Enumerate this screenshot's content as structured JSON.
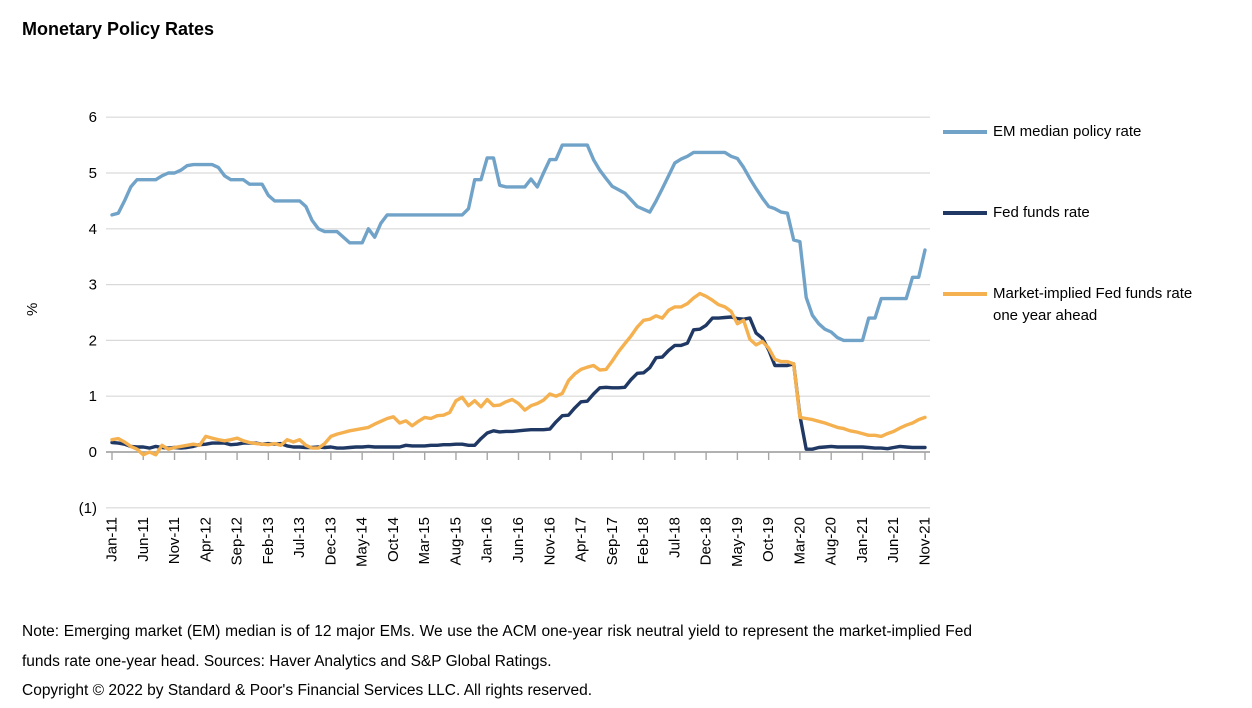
{
  "title": "Monetary Policy Rates",
  "y_axis_label": "%",
  "footer": {
    "note": "Note: Emerging market (EM) median is of 12 major EMs. We use the ACM one-year risk neutral yield to represent the market-implied Fed funds rate one-year head. Sources: Haver Analytics and S&P Global Ratings.",
    "copyright": "Copyright © 2022 by Standard & Poor's Financial Services LLC. All rights reserved."
  },
  "colors": {
    "grid": "#D9D9D9",
    "axis": "#A6A6A6",
    "text": "#000000",
    "em_line": "#71A3C9",
    "fed_line": "#1F3864",
    "implied_line": "#F5B04F"
  },
  "chart_data": {
    "type": "line",
    "title": "Monetary Policy Rates",
    "xlabel": "",
    "ylabel": "%",
    "ylim": [
      -1,
      6
    ],
    "grid": "horizontal",
    "legend_position": "right",
    "x_start": "Jan-11",
    "x_end": "Nov-21",
    "x_points": 131,
    "x_tick_every_months": 5,
    "x_tick_labels": [
      "Jan-11",
      "Jun-11",
      "Nov-11",
      "Apr-12",
      "Sep-12",
      "Feb-13",
      "Jul-13",
      "Dec-13",
      "May-14",
      "Oct-14",
      "Mar-15",
      "Aug-15",
      "Jan-16",
      "Jun-16",
      "Nov-16",
      "Apr-17",
      "Sep-17",
      "Feb-18",
      "Jul-18",
      "Dec-18",
      "May-19",
      "Oct-19",
      "Mar-20",
      "Aug-20",
      "Jan-21",
      "Jun-21",
      "Nov-21"
    ],
    "y_ticks": [
      {
        "value": 6,
        "label": "6"
      },
      {
        "value": 5,
        "label": "5"
      },
      {
        "value": 4,
        "label": "4"
      },
      {
        "value": 3,
        "label": "3"
      },
      {
        "value": 2,
        "label": "2"
      },
      {
        "value": 1,
        "label": "1"
      },
      {
        "value": 0,
        "label": "0"
      },
      {
        "value": -1,
        "label": "(1)"
      }
    ],
    "series": [
      {
        "name": "EM median policy rate",
        "color": "#71A3C9",
        "values": [
          4.25,
          4.28,
          4.5,
          4.75,
          4.88,
          4.88,
          4.88,
          4.88,
          4.95,
          5.0,
          5.0,
          5.05,
          5.13,
          5.15,
          5.15,
          5.15,
          5.15,
          5.1,
          4.95,
          4.88,
          4.88,
          4.88,
          4.8,
          4.8,
          4.8,
          4.6,
          4.5,
          4.5,
          4.5,
          4.5,
          4.5,
          4.4,
          4.15,
          4.0,
          3.95,
          3.95,
          3.95,
          3.85,
          3.75,
          3.75,
          3.75,
          4.0,
          3.85,
          4.1,
          4.25,
          4.25,
          4.25,
          4.25,
          4.25,
          4.25,
          4.25,
          4.25,
          4.25,
          4.25,
          4.25,
          4.25,
          4.25,
          4.36,
          4.88,
          4.88,
          5.27,
          5.27,
          4.78,
          4.75,
          4.75,
          4.75,
          4.75,
          4.89,
          4.75,
          5.0,
          5.24,
          5.24,
          5.5,
          5.5,
          5.5,
          5.5,
          5.5,
          5.24,
          5.05,
          4.9,
          4.76,
          4.7,
          4.64,
          4.52,
          4.4,
          4.35,
          4.3,
          4.5,
          4.72,
          4.95,
          5.18,
          5.25,
          5.3,
          5.37,
          5.37,
          5.37,
          5.37,
          5.37,
          5.37,
          5.3,
          5.26,
          5.1,
          4.9,
          4.72,
          4.55,
          4.4,
          4.36,
          4.3,
          4.28,
          3.8,
          3.77,
          2.77,
          2.45,
          2.3,
          2.2,
          2.15,
          2.05,
          2.0,
          2.0,
          2.0,
          2.0,
          2.4,
          2.4,
          2.75,
          2.75,
          2.75,
          2.75,
          2.75,
          3.13,
          3.13,
          3.62
        ]
      },
      {
        "name": "Fed funds rate",
        "color": "#1F3864",
        "values": [
          0.17,
          0.16,
          0.14,
          0.1,
          0.09,
          0.09,
          0.07,
          0.1,
          0.08,
          0.07,
          0.08,
          0.07,
          0.08,
          0.1,
          0.13,
          0.14,
          0.16,
          0.16,
          0.16,
          0.13,
          0.14,
          0.16,
          0.16,
          0.16,
          0.14,
          0.15,
          0.14,
          0.15,
          0.11,
          0.09,
          0.09,
          0.08,
          0.08,
          0.09,
          0.08,
          0.09,
          0.07,
          0.07,
          0.08,
          0.09,
          0.09,
          0.1,
          0.09,
          0.09,
          0.09,
          0.09,
          0.09,
          0.12,
          0.11,
          0.11,
          0.11,
          0.12,
          0.12,
          0.13,
          0.13,
          0.14,
          0.14,
          0.12,
          0.12,
          0.24,
          0.34,
          0.38,
          0.36,
          0.37,
          0.37,
          0.38,
          0.39,
          0.4,
          0.4,
          0.4,
          0.41,
          0.54,
          0.65,
          0.66,
          0.79,
          0.9,
          0.91,
          1.04,
          1.15,
          1.16,
          1.15,
          1.15,
          1.16,
          1.3,
          1.41,
          1.42,
          1.51,
          1.69,
          1.7,
          1.82,
          1.91,
          1.91,
          1.95,
          2.19,
          2.2,
          2.27,
          2.4,
          2.4,
          2.41,
          2.42,
          2.39,
          2.38,
          2.4,
          2.13,
          2.04,
          1.83,
          1.55,
          1.55,
          1.55,
          1.58,
          0.65,
          0.05,
          0.05,
          0.08,
          0.09,
          0.1,
          0.09,
          0.09,
          0.09,
          0.09,
          0.09,
          0.08,
          0.07,
          0.07,
          0.06,
          0.08,
          0.1,
          0.09,
          0.08,
          0.08,
          0.08
        ]
      },
      {
        "name": "Market-implied Fed funds rate one year ahead",
        "color": "#F5B04F",
        "values": [
          0.22,
          0.24,
          0.18,
          0.1,
          0.05,
          -0.05,
          0.0,
          -0.05,
          0.12,
          0.05,
          0.08,
          0.1,
          0.12,
          0.14,
          0.12,
          0.28,
          0.25,
          0.22,
          0.2,
          0.22,
          0.25,
          0.2,
          0.17,
          0.15,
          0.14,
          0.13,
          0.15,
          0.12,
          0.22,
          0.18,
          0.22,
          0.12,
          0.07,
          0.07,
          0.15,
          0.28,
          0.32,
          0.35,
          0.38,
          0.4,
          0.42,
          0.44,
          0.5,
          0.55,
          0.6,
          0.63,
          0.52,
          0.56,
          0.47,
          0.55,
          0.62,
          0.6,
          0.65,
          0.66,
          0.71,
          0.92,
          0.98,
          0.83,
          0.92,
          0.81,
          0.94,
          0.83,
          0.84,
          0.9,
          0.94,
          0.87,
          0.75,
          0.83,
          0.87,
          0.93,
          1.04,
          1.0,
          1.05,
          1.28,
          1.4,
          1.48,
          1.52,
          1.55,
          1.47,
          1.48,
          1.63,
          1.8,
          1.94,
          2.08,
          2.24,
          2.36,
          2.38,
          2.44,
          2.4,
          2.54,
          2.6,
          2.6,
          2.66,
          2.76,
          2.84,
          2.79,
          2.72,
          2.64,
          2.6,
          2.52,
          2.3,
          2.36,
          2.02,
          1.92,
          1.98,
          1.86,
          1.66,
          1.62,
          1.62,
          1.58,
          0.62,
          0.6,
          0.58,
          0.55,
          0.52,
          0.48,
          0.44,
          0.42,
          0.38,
          0.36,
          0.33,
          0.3,
          0.3,
          0.28,
          0.33,
          0.37,
          0.43,
          0.48,
          0.52,
          0.58,
          0.62
        ]
      }
    ]
  }
}
